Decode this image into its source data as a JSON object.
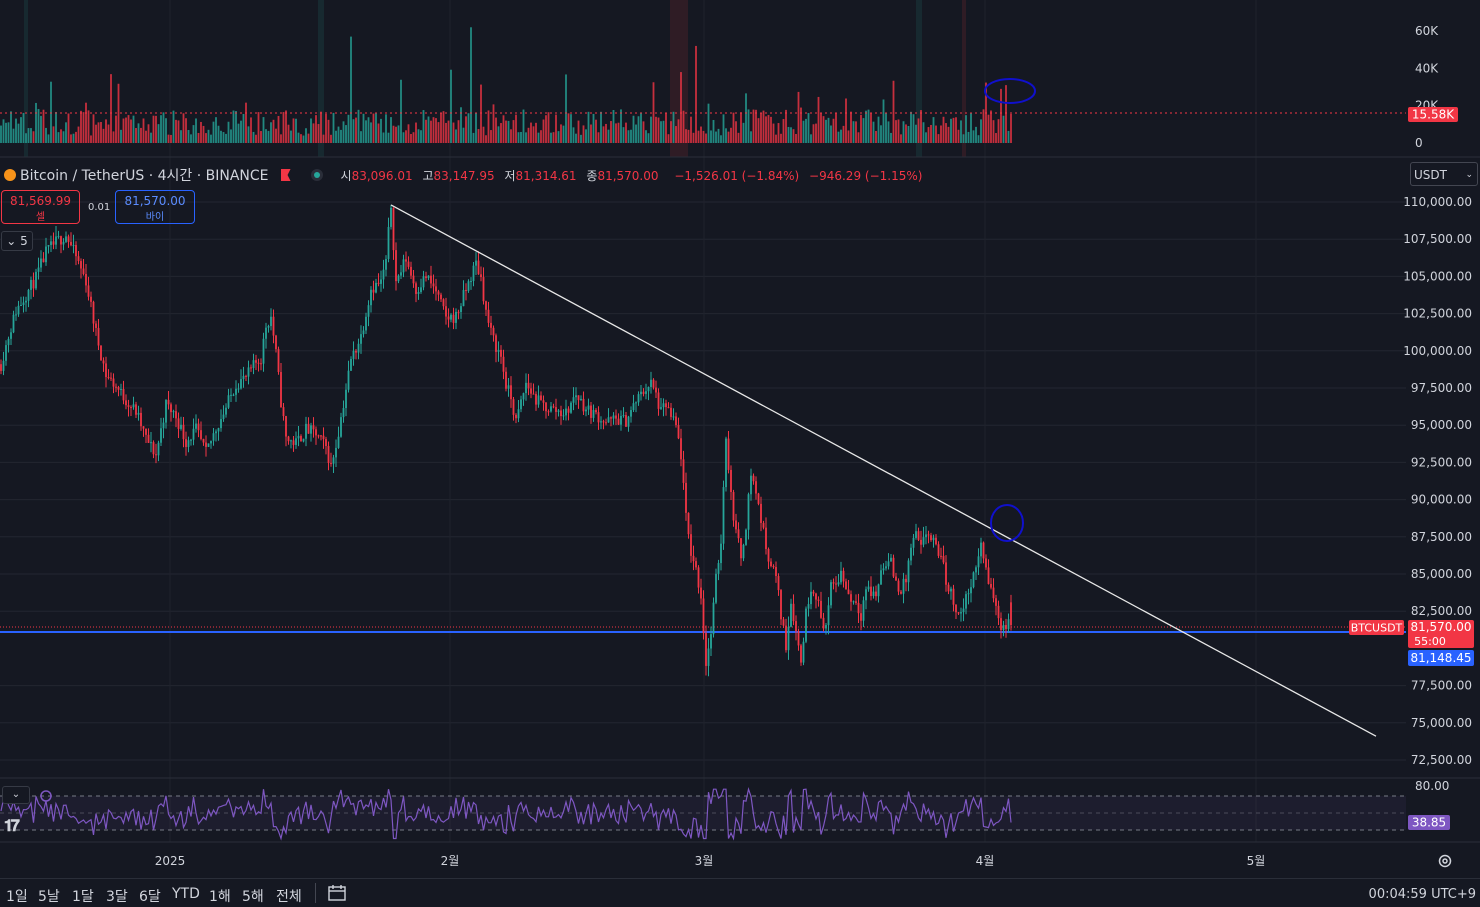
{
  "legend": {
    "symbol": "Bitcoin / TetherUS · 4시간 · BINANCE",
    "o_label": "시",
    "o": "83,096.01",
    "h_label": "고",
    "h": "83,147.95",
    "l_label": "저",
    "l": "81,314.61",
    "c_label": "종",
    "c": "81,570.00",
    "change": "−1,526.01 (−1.84%)",
    "change2": "−946.29 (−1.15%)"
  },
  "trade": {
    "sell_price": "81,569.99",
    "sell_label": "셀",
    "spread": "0.01",
    "buy_price": "81,570.00",
    "buy_label": "바이"
  },
  "indicator_toggle": "5",
  "currency": "USDT",
  "price_labels": {
    "symbol_tag": "BTCUSDT",
    "last_price": "81,570.00",
    "countdown": "55:00",
    "hline_price": "81,148.45",
    "volume_last": "15.58K",
    "rsi_last": "38.85"
  },
  "bottom_bar": {
    "ranges": [
      "1일",
      "5날",
      "1달",
      "3달",
      "6달",
      "YTD",
      "1해",
      "5해",
      "전체"
    ],
    "clock": "00:04:59 UTC+9"
  },
  "colors": {
    "up": "#26a69a",
    "down": "#f23645",
    "hline": "#2962ff",
    "rsi": "#7e57c2",
    "bg": "#151822"
  },
  "chart_data": [
    {
      "type": "candlestick",
      "title": "Bitcoin / TetherUS · 4시간 · BINANCE",
      "y_ticks": [
        "110,000.00",
        "107,500.00",
        "105,000.00",
        "102,500.00",
        "100,000.00",
        "97,500.00",
        "95,000.00",
        "92,500.00",
        "90,000.00",
        "87,500.00",
        "85,000.00",
        "82,500.00",
        "77,500.00",
        "75,000.00",
        "72,500.00"
      ],
      "ylim": [
        72500,
        110000
      ],
      "x_ticks": [
        "2025",
        "2월",
        "3월",
        "4월",
        "5월"
      ],
      "path_points": [
        [
          0,
          99100
        ],
        [
          3,
          101000
        ],
        [
          6,
          102700
        ],
        [
          10,
          103800
        ],
        [
          14,
          104900
        ],
        [
          18,
          106600
        ],
        [
          22,
          107300
        ],
        [
          26,
          107800
        ],
        [
          30,
          106300
        ],
        [
          34,
          104700
        ],
        [
          38,
          101200
        ],
        [
          42,
          98400
        ],
        [
          46,
          97600
        ],
        [
          50,
          96700
        ],
        [
          54,
          95900
        ],
        [
          58,
          94100
        ],
        [
          62,
          93000
        ],
        [
          66,
          96400
        ],
        [
          70,
          95600
        ],
        [
          74,
          93900
        ],
        [
          78,
          94700
        ],
        [
          82,
          93100
        ],
        [
          86,
          94800
        ],
        [
          90,
          96200
        ],
        [
          94,
          97800
        ],
        [
          98,
          98200
        ],
        [
          102,
          99200
        ],
        [
          104,
          99500
        ],
        [
          106,
          101700
        ],
        [
          108,
          102300
        ],
        [
          110,
          99800
        ],
        [
          112,
          96600
        ],
        [
          114,
          94100
        ],
        [
          118,
          93800
        ],
        [
          122,
          94700
        ],
        [
          126,
          94400
        ],
        [
          130,
          93500
        ],
        [
          132,
          92200
        ],
        [
          134,
          93700
        ],
        [
          136,
          95500
        ],
        [
          140,
          99400
        ],
        [
          144,
          101000
        ],
        [
          148,
          104200
        ],
        [
          152,
          104600
        ],
        [
          154,
          106000
        ],
        [
          156,
          109800
        ],
        [
          158,
          104600
        ],
        [
          162,
          106200
        ],
        [
          166,
          104100
        ],
        [
          170,
          105000
        ],
        [
          174,
          104000
        ],
        [
          178,
          102200
        ],
        [
          182,
          102300
        ],
        [
          186,
          104100
        ],
        [
          190,
          105900
        ],
        [
          192,
          104900
        ],
        [
          194,
          102600
        ],
        [
          196,
          101200
        ],
        [
          198,
          100300
        ],
        [
          200,
          99600
        ],
        [
          202,
          97700
        ],
        [
          204,
          96800
        ],
        [
          206,
          95200
        ],
        [
          210,
          97800
        ],
        [
          214,
          96700
        ],
        [
          218,
          96200
        ],
        [
          222,
          96000
        ],
        [
          226,
          95800
        ],
        [
          230,
          97100
        ],
        [
          234,
          96100
        ],
        [
          238,
          95700
        ],
        [
          242,
          95200
        ],
        [
          246,
          95400
        ],
        [
          250,
          95300
        ],
        [
          254,
          96600
        ],
        [
          258,
          97500
        ],
        [
          260,
          97800
        ],
        [
          262,
          97000
        ],
        [
          264,
          95800
        ],
        [
          266,
          96400
        ],
        [
          268,
          95500
        ],
        [
          270,
          94900
        ],
        [
          272,
          93000
        ],
        [
          274,
          88700
        ],
        [
          276,
          86500
        ],
        [
          278,
          85300
        ],
        [
          280,
          83500
        ],
        [
          282,
          79000
        ],
        [
          284,
          81000
        ],
        [
          286,
          84600
        ],
        [
          288,
          87300
        ],
        [
          290,
          94400
        ],
        [
          292,
          90200
        ],
        [
          294,
          87800
        ],
        [
          296,
          86200
        ],
        [
          298,
          88400
        ],
        [
          300,
          91800
        ],
        [
          302,
          90500
        ],
        [
          304,
          88700
        ],
        [
          306,
          86800
        ],
        [
          308,
          85700
        ],
        [
          310,
          84800
        ],
        [
          312,
          82300
        ],
        [
          314,
          80200
        ],
        [
          316,
          83200
        ],
        [
          318,
          81200
        ],
        [
          320,
          79100
        ],
        [
          322,
          82400
        ],
        [
          324,
          84200
        ],
        [
          326,
          83700
        ],
        [
          328,
          82000
        ],
        [
          330,
          81500
        ],
        [
          332,
          84000
        ],
        [
          334,
          84400
        ],
        [
          336,
          85100
        ],
        [
          338,
          84100
        ],
        [
          340,
          83300
        ],
        [
          342,
          83200
        ],
        [
          344,
          82300
        ],
        [
          346,
          84100
        ],
        [
          348,
          83700
        ],
        [
          350,
          83600
        ],
        [
          352,
          85200
        ],
        [
          354,
          85900
        ],
        [
          356,
          85700
        ],
        [
          358,
          84400
        ],
        [
          360,
          83900
        ],
        [
          362,
          84600
        ],
        [
          364,
          86800
        ],
        [
          366,
          87600
        ],
        [
          368,
          86600
        ],
        [
          370,
          87800
        ],
        [
          372,
          87400
        ],
        [
          374,
          86700
        ],
        [
          376,
          86300
        ],
        [
          378,
          84500
        ],
        [
          380,
          83700
        ],
        [
          382,
          82700
        ],
        [
          384,
          82300
        ],
        [
          386,
          83300
        ],
        [
          388,
          84500
        ],
        [
          390,
          85100
        ],
        [
          392,
          87200
        ],
        [
          394,
          85100
        ],
        [
          396,
          84000
        ],
        [
          398,
          82700
        ],
        [
          400,
          81570
        ]
      ],
      "ohlc_last": {
        "o": 83096.01,
        "h": 83147.95,
        "l": 81314.61,
        "c": 81570.0
      },
      "trendline": {
        "from": [
          156,
          109800
        ],
        "to": [
          550,
          74100
        ]
      },
      "hline": 81148.45
    },
    {
      "type": "bar",
      "name": "Volume",
      "y_ticks": [
        "60K",
        "40K",
        "20K",
        "0"
      ],
      "ylim": [
        0,
        65000
      ],
      "last_value": 15580
    },
    {
      "type": "line",
      "name": "RSI",
      "y_ticks": [
        "80.00"
      ],
      "ylim": [
        20,
        80
      ],
      "band": [
        30,
        70
      ],
      "last_value": 38.85
    }
  ]
}
